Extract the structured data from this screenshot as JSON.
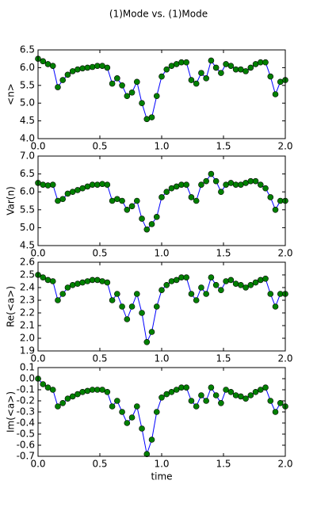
{
  "chart_data": [
    {
      "type": "line",
      "title": "(1)Mode vs. (1)Mode",
      "ylabel": "<n>",
      "x": [
        0,
        0.04,
        0.08,
        0.12,
        0.16,
        0.2,
        0.24,
        0.28,
        0.32,
        0.36,
        0.4,
        0.44,
        0.48,
        0.52,
        0.56,
        0.6,
        0.64,
        0.68,
        0.72,
        0.76,
        0.8,
        0.84,
        0.88,
        0.92,
        0.96,
        1.0,
        1.04,
        1.08,
        1.12,
        1.16,
        1.2,
        1.24,
        1.28,
        1.32,
        1.36,
        1.4,
        1.44,
        1.48,
        1.52,
        1.56,
        1.6,
        1.64,
        1.68,
        1.72,
        1.76,
        1.8,
        1.84,
        1.88,
        1.92,
        1.96,
        2.0
      ],
      "series": [
        {
          "line_color": "#0000ff",
          "color": "#008000",
          "values": [
            6.25,
            6.18,
            6.1,
            6.05,
            5.45,
            5.65,
            5.8,
            5.9,
            5.95,
            5.98,
            6.0,
            6.02,
            6.05,
            6.05,
            6.0,
            5.55,
            5.7,
            5.5,
            5.2,
            5.3,
            5.6,
            5.0,
            4.55,
            4.6,
            5.2,
            5.75,
            5.95,
            6.05,
            6.1,
            6.15,
            6.15,
            5.65,
            5.55,
            5.85,
            5.7,
            6.2,
            6.0,
            5.85,
            6.1,
            6.05,
            5.95,
            5.95,
            5.9,
            6.0,
            6.1,
            6.15,
            6.15,
            5.75,
            5.25,
            5.6,
            5.65
          ]
        }
      ],
      "xlim": [
        0,
        2
      ],
      "xticks": [
        {
          "value": 0,
          "label": "0.0"
        },
        0.5,
        {
          "value": 1,
          "label": "1.0"
        },
        1.5,
        {
          "value": 2,
          "label": "2.0"
        }
      ],
      "ylim": [
        4,
        6.5
      ],
      "yticks": [
        {
          "value": 4,
          "label": "4.0"
        },
        4.5,
        {
          "value": 5,
          "label": "5.0"
        },
        5.5,
        {
          "value": 6,
          "label": "6.0"
        },
        6.5
      ]
    },
    {
      "type": "line",
      "ylabel": "Var(n)",
      "x": [
        0,
        0.04,
        0.08,
        0.12,
        0.16,
        0.2,
        0.24,
        0.28,
        0.32,
        0.36,
        0.4,
        0.44,
        0.48,
        0.52,
        0.56,
        0.6,
        0.64,
        0.68,
        0.72,
        0.76,
        0.8,
        0.84,
        0.88,
        0.92,
        0.96,
        1.0,
        1.04,
        1.08,
        1.12,
        1.16,
        1.2,
        1.24,
        1.28,
        1.32,
        1.36,
        1.4,
        1.44,
        1.48,
        1.52,
        1.56,
        1.6,
        1.64,
        1.68,
        1.72,
        1.76,
        1.8,
        1.84,
        1.88,
        1.92,
        1.96,
        2.0
      ],
      "series": [
        {
          "line_color": "#0000ff",
          "color": "#008000",
          "values": [
            6.25,
            6.2,
            6.18,
            6.2,
            5.75,
            5.8,
            5.95,
            6.0,
            6.05,
            6.1,
            6.15,
            6.2,
            6.2,
            6.22,
            6.2,
            5.75,
            5.8,
            5.75,
            5.5,
            5.6,
            5.75,
            5.25,
            4.95,
            5.1,
            5.3,
            5.85,
            6.0,
            6.1,
            6.15,
            6.2,
            6.2,
            5.85,
            5.75,
            6.2,
            6.3,
            6.5,
            6.3,
            6.0,
            6.2,
            6.25,
            6.2,
            6.2,
            6.25,
            6.3,
            6.3,
            6.2,
            6.1,
            5.85,
            5.5,
            5.75,
            5.75
          ]
        }
      ],
      "xlim": [
        0,
        2
      ],
      "xticks": [
        {
          "value": 0,
          "label": "0.0"
        },
        0.5,
        {
          "value": 1,
          "label": "1.0"
        },
        1.5,
        {
          "value": 2,
          "label": "2.0"
        }
      ],
      "ylim": [
        4.5,
        7
      ],
      "yticks": [
        4.5,
        {
          "value": 5,
          "label": "5.0"
        },
        5.5,
        {
          "value": 6,
          "label": "6.0"
        },
        6.5,
        {
          "value": 7,
          "label": "7.0"
        }
      ]
    },
    {
      "type": "line",
      "ylabel": "Re(<a>)",
      "x": [
        0,
        0.04,
        0.08,
        0.12,
        0.16,
        0.2,
        0.24,
        0.28,
        0.32,
        0.36,
        0.4,
        0.44,
        0.48,
        0.52,
        0.56,
        0.6,
        0.64,
        0.68,
        0.72,
        0.76,
        0.8,
        0.84,
        0.88,
        0.92,
        0.96,
        1.0,
        1.04,
        1.08,
        1.12,
        1.16,
        1.2,
        1.24,
        1.28,
        1.32,
        1.36,
        1.4,
        1.44,
        1.48,
        1.52,
        1.56,
        1.6,
        1.64,
        1.68,
        1.72,
        1.76,
        1.8,
        1.84,
        1.88,
        1.92,
        1.96,
        2.0
      ],
      "series": [
        {
          "line_color": "#0000ff",
          "color": "#008000",
          "values": [
            2.5,
            2.48,
            2.46,
            2.45,
            2.3,
            2.35,
            2.4,
            2.42,
            2.43,
            2.44,
            2.45,
            2.46,
            2.46,
            2.45,
            2.44,
            2.3,
            2.35,
            2.25,
            2.15,
            2.25,
            2.35,
            2.2,
            1.97,
            2.05,
            2.25,
            2.38,
            2.42,
            2.45,
            2.46,
            2.48,
            2.48,
            2.35,
            2.3,
            2.4,
            2.35,
            2.48,
            2.42,
            2.38,
            2.45,
            2.46,
            2.43,
            2.42,
            2.4,
            2.42,
            2.44,
            2.46,
            2.47,
            2.35,
            2.25,
            2.35,
            2.35
          ]
        }
      ],
      "xlim": [
        0,
        2
      ],
      "xticks": [
        {
          "value": 0,
          "label": "0.0"
        },
        0.5,
        {
          "value": 1,
          "label": "1.0"
        },
        1.5,
        {
          "value": 2,
          "label": "2.0"
        }
      ],
      "ylim": [
        1.9,
        2.6
      ],
      "yticks": [
        1.9,
        {
          "value": 2,
          "label": "2.0"
        },
        2.1,
        2.2,
        2.3,
        2.4,
        2.5,
        2.6
      ]
    },
    {
      "type": "line",
      "ylabel": "Im(<a>)",
      "xlabel": "time",
      "x": [
        0,
        0.04,
        0.08,
        0.12,
        0.16,
        0.2,
        0.24,
        0.28,
        0.32,
        0.36,
        0.4,
        0.44,
        0.48,
        0.52,
        0.56,
        0.6,
        0.64,
        0.68,
        0.72,
        0.76,
        0.8,
        0.84,
        0.88,
        0.92,
        0.96,
        1.0,
        1.04,
        1.08,
        1.12,
        1.16,
        1.2,
        1.24,
        1.28,
        1.32,
        1.36,
        1.4,
        1.44,
        1.48,
        1.52,
        1.56,
        1.6,
        1.64,
        1.68,
        1.72,
        1.76,
        1.8,
        1.84,
        1.88,
        1.92,
        1.96,
        2.0
      ],
      "series": [
        {
          "line_color": "#0000ff",
          "color": "#008000",
          "values": [
            0,
            -0.05,
            -0.08,
            -0.1,
            -0.25,
            -0.22,
            -0.18,
            -0.16,
            -0.14,
            -0.12,
            -0.11,
            -0.1,
            -0.1,
            -0.1,
            -0.12,
            -0.25,
            -0.2,
            -0.3,
            -0.4,
            -0.35,
            -0.25,
            -0.45,
            -0.68,
            -0.55,
            -0.3,
            -0.17,
            -0.14,
            -0.12,
            -0.1,
            -0.08,
            -0.08,
            -0.2,
            -0.25,
            -0.15,
            -0.2,
            -0.08,
            -0.15,
            -0.22,
            -0.1,
            -0.12,
            -0.15,
            -0.16,
            -0.18,
            -0.15,
            -0.12,
            -0.1,
            -0.08,
            -0.2,
            -0.3,
            -0.22,
            -0.25
          ]
        }
      ],
      "xlim": [
        0,
        2
      ],
      "xticks": [
        {
          "value": 0,
          "label": "0.0"
        },
        0.5,
        {
          "value": 1,
          "label": "1.0"
        },
        1.5,
        {
          "value": 2,
          "label": "2.0"
        }
      ],
      "ylim": [
        -0.7,
        0.1
      ],
      "yticks": [
        -0.7,
        -0.6,
        -0.5,
        -0.4,
        -0.3,
        -0.2,
        -0.1,
        {
          "value": 0,
          "label": "0.0"
        },
        0.1
      ]
    }
  ]
}
